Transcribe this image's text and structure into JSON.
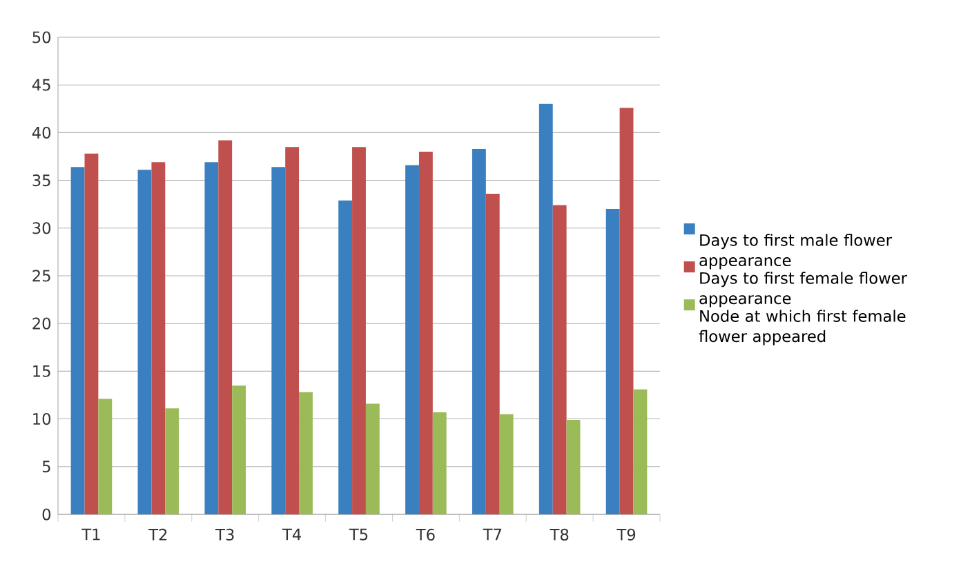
{
  "chart_data": {
    "type": "bar",
    "categories": [
      "T1",
      "T2",
      "T3",
      "T4",
      "T5",
      "T6",
      "T7",
      "T8",
      "T9"
    ],
    "series": [
      {
        "name": "Days to first male flower appearance",
        "color": "#3a7fc0",
        "values": [
          36.4,
          36.1,
          36.9,
          36.4,
          32.9,
          36.6,
          38.3,
          43.0,
          32.0
        ]
      },
      {
        "name": "Days to first female flower appearance",
        "color": "#c0504d",
        "values": [
          37.8,
          36.9,
          39.2,
          38.5,
          38.5,
          38.0,
          33.6,
          32.4,
          42.6
        ]
      },
      {
        "name": "Node at which first female flower appeared",
        "color": "#9bbb59",
        "values": [
          12.1,
          11.1,
          13.5,
          12.8,
          11.6,
          10.7,
          10.5,
          9.9,
          13.1
        ]
      }
    ],
    "ylim": [
      0,
      50
    ],
    "yticks": [
      0,
      5,
      10,
      15,
      20,
      25,
      30,
      35,
      40,
      45,
      50
    ],
    "grid": "y",
    "legend": "right"
  }
}
